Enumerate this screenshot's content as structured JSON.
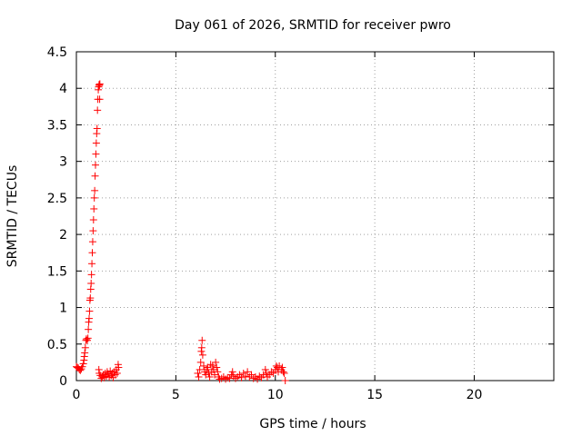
{
  "chart_data": {
    "type": "scatter",
    "title": "Day 061 of 2026, SRMTID for receiver pwro",
    "xlabel": "GPS time / hours",
    "ylabel": "SRMTID / TECUs",
    "xlim": [
      0,
      24
    ],
    "ylim": [
      0,
      4.5
    ],
    "xticks": [
      "0",
      "5",
      "10",
      "15",
      "20"
    ],
    "xtick_values": [
      0,
      5,
      10,
      15,
      20
    ],
    "yticks": [
      "0",
      "0.5",
      "1",
      "1.5",
      "2",
      "2.5",
      "3",
      "3.5",
      "4",
      "4.5"
    ],
    "ytick_values": [
      0,
      0.5,
      1,
      1.5,
      2,
      2.5,
      3,
      3.5,
      4,
      4.5
    ],
    "grid": true,
    "marker": "plus",
    "marker_color": "#ff0000",
    "points": [
      [
        0.0,
        0.19
      ],
      [
        0.05,
        0.18
      ],
      [
        0.1,
        0.17
      ],
      [
        0.15,
        0.15
      ],
      [
        0.2,
        0.14
      ],
      [
        0.25,
        0.16
      ],
      [
        0.3,
        0.19
      ],
      [
        0.35,
        0.23
      ],
      [
        0.38,
        0.28
      ],
      [
        0.4,
        0.33
      ],
      [
        0.42,
        0.38
      ],
      [
        0.45,
        0.45
      ],
      [
        0.48,
        0.55
      ],
      [
        0.5,
        0.57
      ],
      [
        0.55,
        0.55
      ],
      [
        0.58,
        0.58
      ],
      [
        0.6,
        0.7
      ],
      [
        0.62,
        0.8
      ],
      [
        0.64,
        0.85
      ],
      [
        0.66,
        0.95
      ],
      [
        0.68,
        1.1
      ],
      [
        0.7,
        1.13
      ],
      [
        0.72,
        1.25
      ],
      [
        0.74,
        1.33
      ],
      [
        0.76,
        1.45
      ],
      [
        0.78,
        1.6
      ],
      [
        0.8,
        1.75
      ],
      [
        0.82,
        1.9
      ],
      [
        0.84,
        2.05
      ],
      [
        0.86,
        2.2
      ],
      [
        0.88,
        2.35
      ],
      [
        0.9,
        2.5
      ],
      [
        0.92,
        2.6
      ],
      [
        0.94,
        2.8
      ],
      [
        0.96,
        2.95
      ],
      [
        0.98,
        3.1
      ],
      [
        1.0,
        3.25
      ],
      [
        1.02,
        3.38
      ],
      [
        1.04,
        3.45
      ],
      [
        1.06,
        3.7
      ],
      [
        1.08,
        3.85
      ],
      [
        1.1,
        3.98
      ],
      [
        1.12,
        4.02
      ],
      [
        1.14,
        4.05
      ],
      [
        1.16,
        4.04
      ],
      [
        1.18,
        4.06
      ],
      [
        1.17,
        3.85
      ],
      [
        1.13,
        0.15
      ],
      [
        1.15,
        0.1
      ],
      [
        1.2,
        0.07
      ],
      [
        1.25,
        0.03
      ],
      [
        1.3,
        0.05
      ],
      [
        1.35,
        0.08
      ],
      [
        1.4,
        0.04
      ],
      [
        1.45,
        0.1
      ],
      [
        1.5,
        0.06
      ],
      [
        1.55,
        0.12
      ],
      [
        1.6,
        0.09
      ],
      [
        1.65,
        0.05
      ],
      [
        1.7,
        0.13
      ],
      [
        1.75,
        0.07
      ],
      [
        1.8,
        0.1
      ],
      [
        1.85,
        0.04
      ],
      [
        1.9,
        0.12
      ],
      [
        1.95,
        0.08
      ],
      [
        2.0,
        0.15
      ],
      [
        2.05,
        0.1
      ],
      [
        2.1,
        0.22
      ],
      [
        2.12,
        0.18
      ],
      [
        6.1,
        0.1
      ],
      [
        6.15,
        0.05
      ],
      [
        6.2,
        0.15
      ],
      [
        6.25,
        0.25
      ],
      [
        6.28,
        0.4
      ],
      [
        6.3,
        0.45
      ],
      [
        6.32,
        0.55
      ],
      [
        6.35,
        0.35
      ],
      [
        6.4,
        0.2
      ],
      [
        6.45,
        0.12
      ],
      [
        6.5,
        0.08
      ],
      [
        6.55,
        0.15
      ],
      [
        6.6,
        0.18
      ],
      [
        6.65,
        0.1
      ],
      [
        6.7,
        0.05
      ],
      [
        6.75,
        0.22
      ],
      [
        6.8,
        0.12
      ],
      [
        6.85,
        0.2
      ],
      [
        6.9,
        0.15
      ],
      [
        6.95,
        0.08
      ],
      [
        7.0,
        0.25
      ],
      [
        7.05,
        0.18
      ],
      [
        7.1,
        0.12
      ],
      [
        7.15,
        0.05
      ],
      [
        7.2,
        0.02
      ],
      [
        7.3,
        0.03
      ],
      [
        7.4,
        0.05
      ],
      [
        7.5,
        0.02
      ],
      [
        7.6,
        0.04
      ],
      [
        7.7,
        0.03
      ],
      [
        7.8,
        0.08
      ],
      [
        7.85,
        0.12
      ],
      [
        7.9,
        0.06
      ],
      [
        8.0,
        0.03
      ],
      [
        8.1,
        0.05
      ],
      [
        8.2,
        0.08
      ],
      [
        8.3,
        0.04
      ],
      [
        8.4,
        0.1
      ],
      [
        8.5,
        0.06
      ],
      [
        8.6,
        0.12
      ],
      [
        8.7,
        0.05
      ],
      [
        8.8,
        0.08
      ],
      [
        8.9,
        0.03
      ],
      [
        9.0,
        0.05
      ],
      [
        9.1,
        0.02
      ],
      [
        9.2,
        0.06
      ],
      [
        9.3,
        0.04
      ],
      [
        9.4,
        0.08
      ],
      [
        9.5,
        0.15
      ],
      [
        9.55,
        0.1
      ],
      [
        9.6,
        0.05
      ],
      [
        9.7,
        0.08
      ],
      [
        9.8,
        0.12
      ],
      [
        9.9,
        0.1
      ],
      [
        10.0,
        0.15
      ],
      [
        10.05,
        0.2
      ],
      [
        10.1,
        0.18
      ],
      [
        10.15,
        0.12
      ],
      [
        10.2,
        0.2
      ],
      [
        10.3,
        0.15
      ],
      [
        10.35,
        0.18
      ],
      [
        10.4,
        0.12
      ],
      [
        10.45,
        0.1
      ],
      [
        10.5,
        0.0
      ]
    ]
  }
}
